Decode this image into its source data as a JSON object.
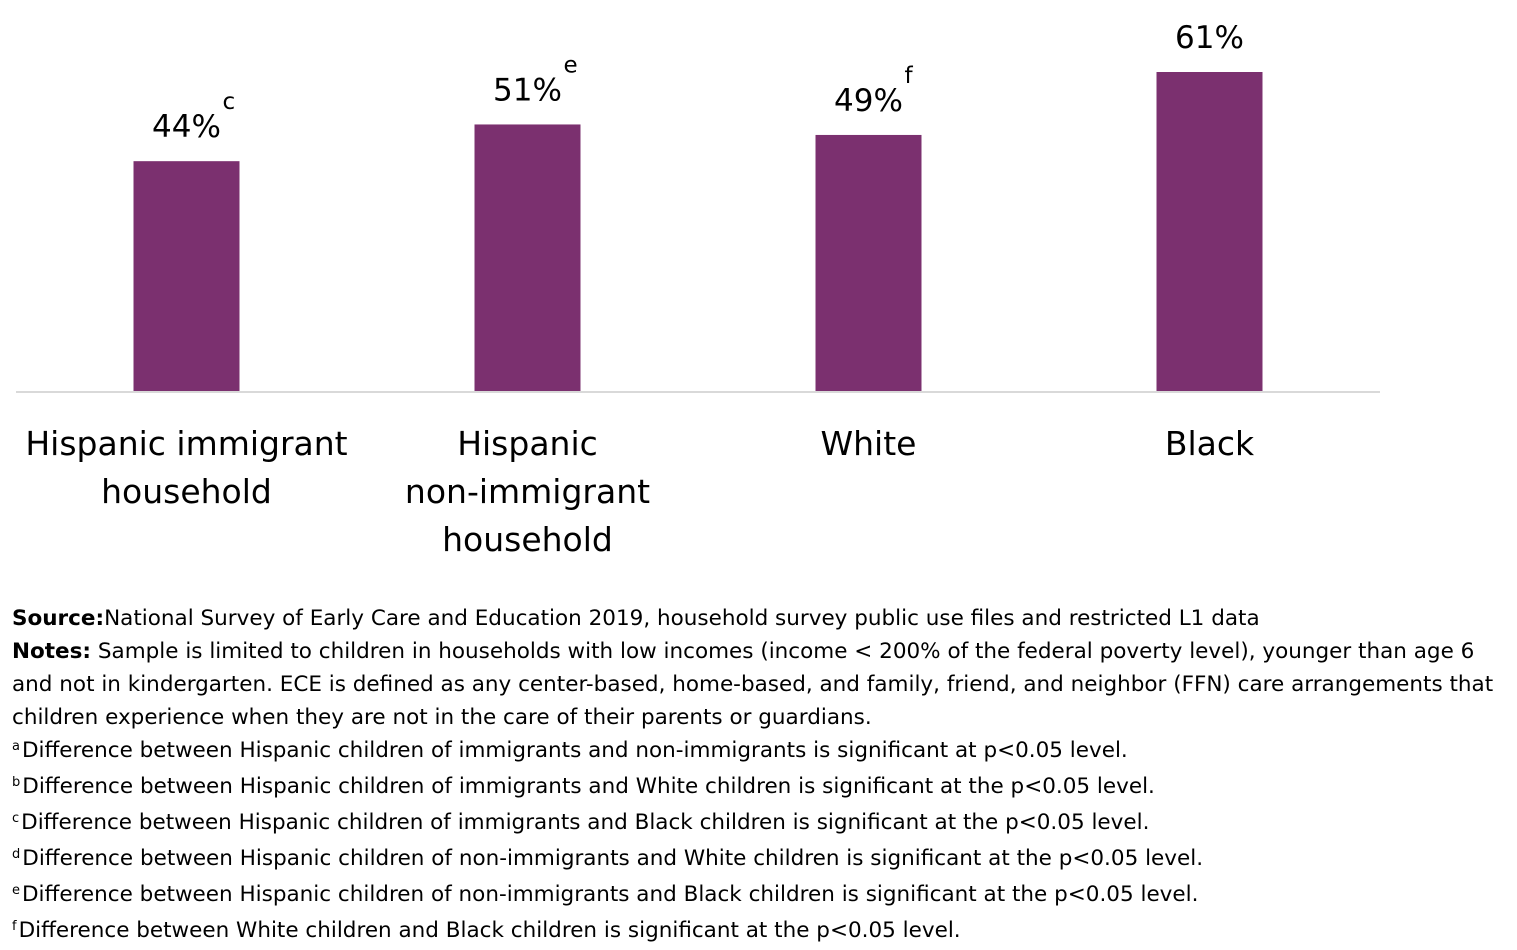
{
  "chart_data": {
    "type": "bar",
    "categories": [
      "Hispanic immigrant household",
      "Hispanic non-immigrant household",
      "White",
      "Black"
    ],
    "category_lines": [
      [
        "Hispanic immigrant",
        "household"
      ],
      [
        "Hispanic",
        "non-immigrant",
        "household"
      ],
      [
        "White"
      ],
      [
        "Black"
      ]
    ],
    "values": [
      44,
      51,
      49,
      61
    ],
    "value_labels": [
      "44%",
      "51%",
      "49%",
      "61%"
    ],
    "superscripts": [
      "c",
      "e",
      "f",
      ""
    ],
    "ylim": [
      0,
      61
    ],
    "bar_color": "#7b306f",
    "axis_color": "#d9d9d9",
    "grid": false,
    "title": "",
    "xlabel": "",
    "ylabel": ""
  },
  "notes": {
    "source_label": "Source:",
    "source_text": "National Survey of Early Care and Education 2019, household survey public use files and restricted L1 data",
    "notes_label": "Notes:",
    "notes_text": " Sample is limited to children in households with low incomes (income < 200% of the federal poverty level), younger than age 6 and not in kindergarten. ECE is defined as any center-based, home-based, and family, friend, and neighbor (FFN) care arrangements that children experience when they are not in the care of their parents or guardians.",
    "footnotes": [
      {
        "mark": "a",
        "text": "Difference between Hispanic children of immigrants and non-immigrants is significant at p<0.05 level."
      },
      {
        "mark": "b",
        "text": "Difference between Hispanic children of immigrants and White children is significant at the p<0.05 level."
      },
      {
        "mark": "c",
        "text": "Difference between Hispanic children of immigrants and Black children is significant at the p<0.05 level."
      },
      {
        "mark": "d",
        "text": "Difference between Hispanic children of non-immigrants and White children is significant at the p<0.05 level."
      },
      {
        "mark": "e",
        "text": "Difference between Hispanic children of non-immigrants and Black children is significant at the p<0.05 level."
      },
      {
        "mark": "f",
        "text": "Difference between White children and Black children is significant at the p<0.05 level."
      }
    ]
  }
}
